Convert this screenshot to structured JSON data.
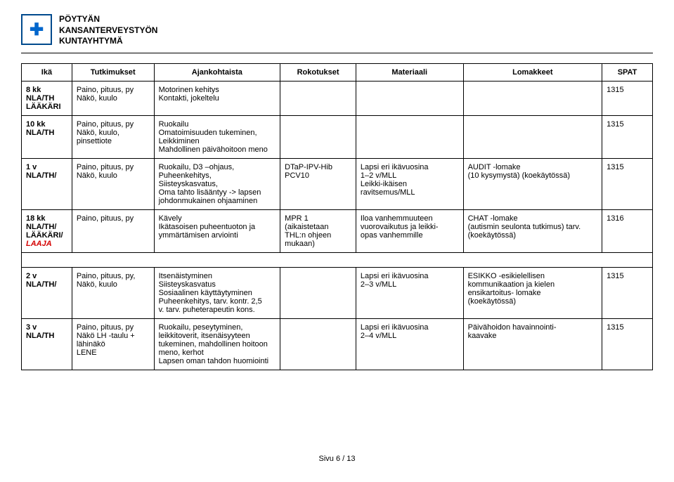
{
  "org": {
    "line1": "PÖYTYÄN",
    "line2": "KANSANTERVEYSTYÖN",
    "line3": "KUNTAYHTYMÄ"
  },
  "headers": {
    "ika": "Ikä",
    "tutk": "Tutkimukset",
    "ajan": "Ajankohtaista",
    "roko": "Rokotukset",
    "mat": "Materiaali",
    "lom": "Lomakkeet",
    "spat": "SPAT"
  },
  "rows": [
    {
      "age_main": "8 kk",
      "age_sub": "NLA/TH\nLÄÄKÄRI",
      "tutk": "Paino, pituus, py\nNäkö, kuulo",
      "ajan": "Motorinen kehitys\nKontakti, jokeltelu",
      "roko": "",
      "mat": "",
      "lom": "",
      "spat": "1315"
    },
    {
      "age_main": "10 kk",
      "age_sub": "NLA/TH",
      "tutk": "Paino, pituus, py\nNäkö, kuulo,\npinsettiote",
      "ajan": "Ruokailu\nOmatoimisuuden tukeminen,\nLeikkiminen\nMahdollinen päivähoitoon meno",
      "roko": "",
      "mat": "",
      "lom": "",
      "spat": "1315"
    },
    {
      "age_main": "1 v",
      "age_sub": "NLA/TH/",
      "tutk": "Paino, pituus, py\nNäkö, kuulo",
      "ajan": "Ruokailu, D3 –ohjaus,\nPuheenkehitys,\nSiisteyskasvatus,\nOma tahto lisääntyy -> lapsen\njohdonmukainen ohjaaminen",
      "roko": "DTaP-IPV-Hib\nPCV10",
      "mat": "Lapsi eri ikävuosina\n1–2 v/MLL\nLeikki-ikäisen\nravitsemus/MLL",
      "lom": "AUDIT -lomake\n(10 kysymystä) (koekäytössä)",
      "spat": "1315"
    },
    {
      "age_main": "18 kk",
      "age_sub": "NLA/TH/\nLÄÄKÄRI/",
      "age_laaja": "LAAJA",
      "tutk": "Paino, pituus, py",
      "ajan": "Kävely\nIkätasoisen puheentuoton ja\nymmärtämisen arviointi",
      "roko": "MPR 1\n(aikaistetaan\nTHL:n ohjeen\nmukaan)",
      "mat": "Iloa vanhemmuuteen\nvuorovaikutus ja leikki-\nopas vanhemmille",
      "lom": "CHAT -lomake\n(autismin seulonta tutkimus) tarv.\n(koekäytössä)",
      "spat": "1316"
    },
    {
      "age_main": "2 v",
      "age_sub": "NLA/TH/",
      "tutk": "Paino, pituus, py,\nNäkö, kuulo",
      "ajan": "Itsenäistyminen\nSiisteyskasvatus\nSosiaalinen käyttäytyminen\nPuheenkehitys, tarv. kontr. 2,5\nv. tarv. puheterapeutin kons.",
      "roko": "",
      "mat": "Lapsi eri ikävuosina\n2–3 v/MLL",
      "lom": "ESIKKO -esikielellisen\nkommunikaation ja kielen\nensikartoitus- lomake\n(koekäytössä)",
      "spat": "1315"
    },
    {
      "age_main": "3 v",
      "age_sub": "NLA/TH",
      "tutk": "Paino, pituus, py\nNäkö LH -taulu +\nlähinäkö\nLENE",
      "ajan": "Ruokailu, peseytyminen,\nleikkitoverit, itsenäisyyteen\ntukeminen, mahdollinen hoitoon\nmeno, kerhot\nLapsen oman tahdon huomiointi",
      "roko": "",
      "mat": "Lapsi eri ikävuosina\n2–4 v/MLL",
      "lom": "Päivähoidon havainnointi-\nkaavake",
      "spat": "1315"
    }
  ],
  "footer": "Sivu 6 / 13"
}
